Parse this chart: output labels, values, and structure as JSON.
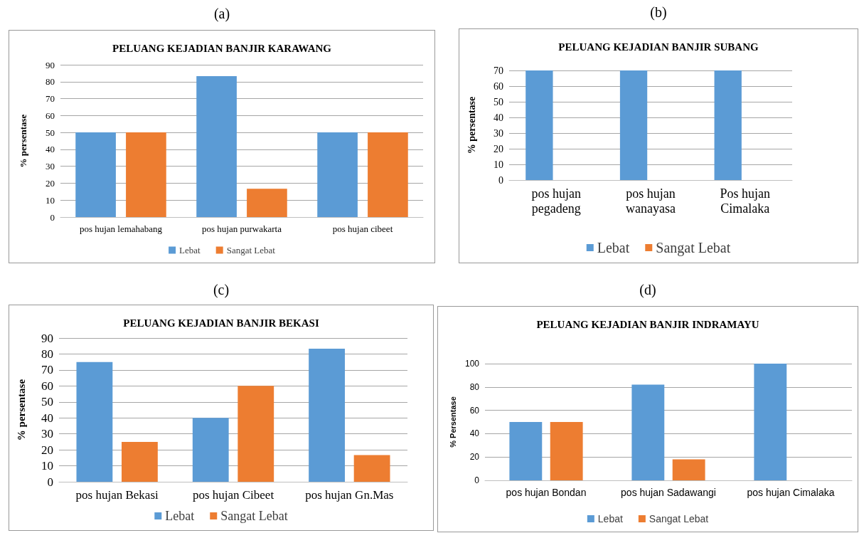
{
  "chart_data": [
    {
      "type": "bar",
      "title": "PELUANG KEJADIAN BANJIR KARAWANG",
      "annotations": [
        "(a)"
      ],
      "ylabel": "% persentase",
      "categories": [
        "pos hujan lemahabang",
        "pos hujan purwakarta",
        "pos hujan cibeet"
      ],
      "series": [
        {
          "name": "Lebat",
          "color": "#5b9bd5",
          "values": [
            50,
            83.3,
            50
          ]
        },
        {
          "name": "Sangat Lebat",
          "color": "#ed7d31",
          "values": [
            50,
            16.7,
            50
          ]
        }
      ],
      "ylim": [
        0,
        90
      ],
      "yticks": [
        0,
        10,
        20,
        30,
        40,
        50,
        60,
        70,
        80,
        90
      ],
      "grid": "y",
      "legend": "bottom"
    },
    {
      "type": "bar",
      "title": "PELUANG KEJADIAN BANJIR SUBANG",
      "annotations": [
        "(b)"
      ],
      "ylabel": "% persentase",
      "categories": [
        "pos hujan\npegadeng",
        "pos hujan\nwanayasa",
        "Pos hujan\nCimalaka"
      ],
      "series": [
        {
          "name": "Lebat",
          "color": "#5b9bd5",
          "values": [
            70,
            70,
            70
          ]
        },
        {
          "name": "Sangat Lebat",
          "color": "#ed7d31",
          "values": [
            null,
            null,
            null
          ]
        }
      ],
      "ylim": [
        0,
        70
      ],
      "yticks": [
        0,
        10,
        20,
        30,
        40,
        50,
        60,
        70
      ],
      "grid": "y",
      "legend": "bottom"
    },
    {
      "type": "bar",
      "title": "PELUANG KEJADIAN BANJIR BEKASI",
      "annotations": [
        "(c)"
      ],
      "ylabel": "% persentase",
      "categories": [
        "pos hujan Bekasi",
        "pos hujan Cibeet",
        "pos hujan Gn.Mas"
      ],
      "series": [
        {
          "name": "Lebat",
          "color": "#5b9bd5",
          "values": [
            75,
            40,
            83.3
          ]
        },
        {
          "name": "Sangat Lebat",
          "color": "#ed7d31",
          "values": [
            25,
            60,
            16.7
          ]
        }
      ],
      "ylim": [
        0,
        90
      ],
      "yticks": [
        0,
        10,
        20,
        30,
        40,
        50,
        60,
        70,
        80,
        90
      ],
      "grid": "y",
      "legend": "bottom"
    },
    {
      "type": "bar",
      "title": "PELUANG KEJADIAN BANJIR INDRAMAYU",
      "annotations": [
        "(d)"
      ],
      "ylabel": "% Persentase",
      "categories": [
        "pos hujan Bondan",
        "pos hujan Sadawangi",
        "pos hujan Cimalaka"
      ],
      "series": [
        {
          "name": "Lebat",
          "color": "#5b9bd5",
          "values": [
            50,
            82,
            100
          ]
        },
        {
          "name": "Sangat Lebat",
          "color": "#ed7d31",
          "values": [
            50,
            18,
            0
          ]
        }
      ],
      "ylim": [
        0,
        100
      ],
      "yticks": [
        0,
        20,
        40,
        60,
        80,
        100
      ],
      "grid": "y",
      "legend": "bottom"
    }
  ]
}
